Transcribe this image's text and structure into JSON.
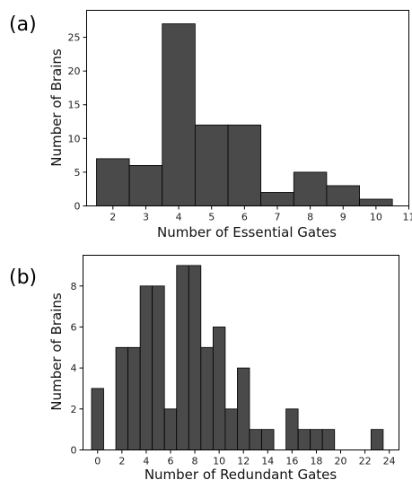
{
  "chart_data": [
    {
      "type": "bar",
      "panel_label": "(a)",
      "xlabel": "Number of Essential Gates",
      "ylabel": "Number of Brains",
      "xlim": [
        1.2,
        11
      ],
      "ylim": [
        0,
        29
      ],
      "xticks": [
        2,
        3,
        4,
        5,
        6,
        7,
        8,
        9,
        10,
        11
      ],
      "yticks": [
        0,
        5,
        10,
        15,
        20,
        25
      ],
      "bar_color": "#4a4a4a",
      "bars": [
        {
          "x0": 1.5,
          "x1": 2.5,
          "value": 7
        },
        {
          "x0": 2.5,
          "x1": 3.5,
          "value": 6
        },
        {
          "x0": 3.5,
          "x1": 4.5,
          "value": 27
        },
        {
          "x0": 4.5,
          "x1": 5.5,
          "value": 12
        },
        {
          "x0": 5.5,
          "x1": 6.5,
          "value": 12
        },
        {
          "x0": 6.5,
          "x1": 7.5,
          "value": 2
        },
        {
          "x0": 7.5,
          "x1": 8.5,
          "value": 5
        },
        {
          "x0": 8.5,
          "x1": 9.5,
          "value": 3
        },
        {
          "x0": 9.5,
          "x1": 10.5,
          "value": 1
        }
      ]
    },
    {
      "type": "bar",
      "panel_label": "(b)",
      "xlabel": "Number of Redundant Gates",
      "ylabel": "Number of Brains",
      "xlim": [
        -1.2,
        24.8
      ],
      "ylim": [
        0,
        9.5
      ],
      "xticks": [
        0,
        2,
        4,
        6,
        8,
        10,
        12,
        14,
        16,
        18,
        20,
        22,
        24
      ],
      "yticks": [
        0,
        2,
        4,
        6,
        8
      ],
      "bar_color": "#4a4a4a",
      "bars": [
        {
          "x0": -0.5,
          "x1": 0.5,
          "value": 3
        },
        {
          "x0": 1.5,
          "x1": 2.5,
          "value": 5
        },
        {
          "x0": 2.5,
          "x1": 3.5,
          "value": 5
        },
        {
          "x0": 3.5,
          "x1": 4.5,
          "value": 8
        },
        {
          "x0": 4.5,
          "x1": 5.5,
          "value": 8
        },
        {
          "x0": 5.5,
          "x1": 6.5,
          "value": 2
        },
        {
          "x0": 6.5,
          "x1": 7.5,
          "value": 9
        },
        {
          "x0": 7.5,
          "x1": 8.5,
          "value": 9
        },
        {
          "x0": 8.5,
          "x1": 9.5,
          "value": 5
        },
        {
          "x0": 9.5,
          "x1": 10.5,
          "value": 6
        },
        {
          "x0": 10.5,
          "x1": 11.5,
          "value": 2
        },
        {
          "x0": 11.5,
          "x1": 12.5,
          "value": 4
        },
        {
          "x0": 12.5,
          "x1": 13.5,
          "value": 1
        },
        {
          "x0": 13.5,
          "x1": 14.5,
          "value": 1
        },
        {
          "x0": 15.5,
          "x1": 16.5,
          "value": 2
        },
        {
          "x0": 16.5,
          "x1": 17.5,
          "value": 1
        },
        {
          "x0": 17.5,
          "x1": 18.5,
          "value": 1
        },
        {
          "x0": 18.5,
          "x1": 19.5,
          "value": 1
        },
        {
          "x0": 22.5,
          "x1": 23.5,
          "value": 1
        }
      ]
    }
  ]
}
